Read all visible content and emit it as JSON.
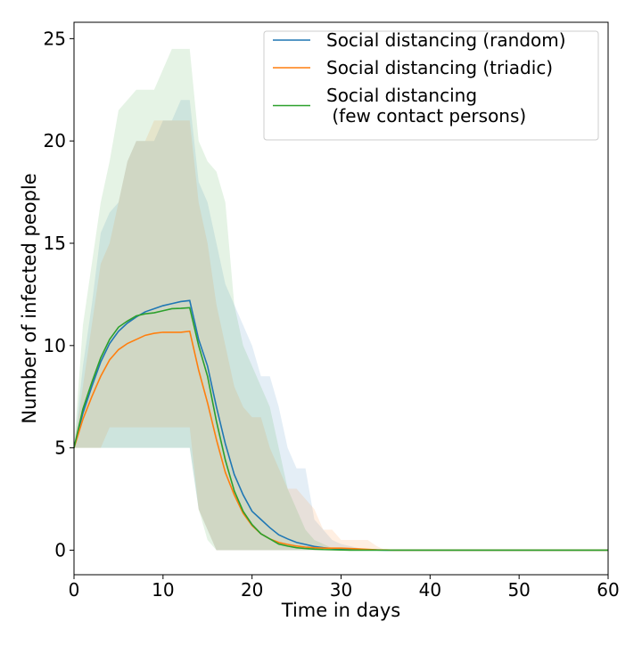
{
  "chart_data": {
    "type": "line",
    "title": "",
    "xlabel": "Time in days",
    "ylabel": "Number of infected people",
    "xlim": [
      0,
      60
    ],
    "ylim": [
      -1.2,
      25.8
    ],
    "xticks": [
      0,
      10,
      20,
      30,
      40,
      50,
      60
    ],
    "yticks": [
      0,
      5,
      10,
      15,
      20,
      25
    ],
    "grid": false,
    "legend_position": "top-right",
    "x": [
      0,
      1,
      2,
      3,
      4,
      5,
      6,
      7,
      8,
      9,
      10,
      11,
      12,
      13,
      14,
      15,
      16,
      17,
      18,
      19,
      20,
      21,
      22,
      23,
      24,
      25,
      26,
      27,
      28,
      29,
      30,
      31,
      32,
      33,
      34,
      35,
      36,
      37,
      38,
      39,
      40,
      41,
      42,
      43,
      44,
      45,
      46,
      47,
      48,
      49,
      50,
      51,
      52,
      53,
      54,
      55,
      56,
      57,
      58,
      59,
      60
    ],
    "series": [
      {
        "name": "Social distancing (random)",
        "color": "#1f77b4",
        "values": [
          5.0,
          6.7,
          8.0,
          9.2,
          10.1,
          10.7,
          11.1,
          11.4,
          11.65,
          11.8,
          11.95,
          12.05,
          12.15,
          12.2,
          10.3,
          9.0,
          7.0,
          5.2,
          3.7,
          2.7,
          1.9,
          1.5,
          1.1,
          0.75,
          0.55,
          0.38,
          0.28,
          0.18,
          0.12,
          0.08,
          0.06,
          0.04,
          0.03,
          0.02,
          0.01,
          0,
          0,
          0,
          0,
          0,
          0,
          0,
          0,
          0,
          0,
          0,
          0,
          0,
          0,
          0,
          0,
          0,
          0,
          0,
          0,
          0,
          0,
          0,
          0,
          0,
          0
        ],
        "band_low": [
          5,
          5,
          5,
          5,
          5,
          5,
          5,
          5,
          5,
          5,
          5,
          5,
          5,
          5,
          2,
          1,
          0,
          0,
          0,
          0,
          0,
          0,
          0,
          0,
          0,
          0,
          0,
          0,
          0,
          0,
          0,
          0,
          0,
          0,
          0,
          0,
          0,
          0,
          0,
          0,
          0,
          0,
          0,
          0,
          0,
          0,
          0,
          0,
          0,
          0,
          0,
          0,
          0,
          0,
          0,
          0,
          0,
          0,
          0,
          0,
          0
        ],
        "band_high": [
          5,
          9,
          12,
          15.5,
          16.5,
          17,
          19,
          20,
          20,
          20,
          21,
          21,
          22,
          22,
          18,
          17,
          15,
          13,
          12,
          11,
          10,
          8.5,
          8.5,
          7,
          5,
          4,
          4,
          1.5,
          1,
          0.5,
          0.3,
          0.2,
          0.1,
          0.05,
          0,
          0,
          0,
          0,
          0,
          0,
          0,
          0,
          0,
          0,
          0,
          0,
          0,
          0,
          0,
          0,
          0,
          0,
          0,
          0,
          0,
          0,
          0,
          0,
          0,
          0,
          0
        ]
      },
      {
        "name": "Social distancing (triadic)",
        "color": "#ff7f0e",
        "values": [
          5.0,
          6.4,
          7.5,
          8.5,
          9.3,
          9.8,
          10.1,
          10.3,
          10.5,
          10.6,
          10.65,
          10.65,
          10.65,
          10.7,
          8.8,
          7.2,
          5.4,
          3.8,
          2.7,
          1.8,
          1.2,
          0.8,
          0.55,
          0.38,
          0.28,
          0.2,
          0.15,
          0.12,
          0.1,
          0.1,
          0.1,
          0.08,
          0.06,
          0.04,
          0.02,
          0.01,
          0,
          0,
          0,
          0,
          0,
          0,
          0,
          0,
          0,
          0,
          0,
          0,
          0,
          0,
          0,
          0,
          0,
          0,
          0,
          0,
          0,
          0,
          0,
          0,
          0
        ],
        "band_low": [
          5,
          5,
          5,
          5,
          6,
          6,
          6,
          6,
          6,
          6,
          6,
          6,
          6,
          6,
          2,
          1,
          0,
          0,
          0,
          0,
          0,
          0,
          0,
          0,
          0,
          0,
          0,
          0,
          0,
          0,
          0,
          0,
          0,
          0,
          0,
          0,
          0,
          0,
          0,
          0,
          0,
          0,
          0,
          0,
          0,
          0,
          0,
          0,
          0,
          0,
          0,
          0,
          0,
          0,
          0,
          0,
          0,
          0,
          0,
          0,
          0
        ],
        "band_high": [
          5,
          8,
          11,
          14,
          15,
          17,
          19,
          20,
          20,
          21,
          21,
          21,
          21,
          21,
          17,
          15,
          12,
          10,
          8,
          7,
          6.5,
          6.5,
          5,
          4,
          3,
          3,
          2.5,
          2,
          1,
          1,
          0.5,
          0.5,
          0.5,
          0.5,
          0.2,
          0,
          0,
          0,
          0,
          0,
          0,
          0,
          0,
          0,
          0,
          0,
          0,
          0,
          0,
          0,
          0,
          0,
          0,
          0,
          0,
          0,
          0,
          0,
          0,
          0,
          0
        ]
      },
      {
        "name": "Social distancing\n (few contact persons)",
        "color": "#2ca02c",
        "values": [
          5.0,
          6.9,
          8.2,
          9.4,
          10.3,
          10.9,
          11.2,
          11.45,
          11.55,
          11.6,
          11.7,
          11.8,
          11.82,
          11.85,
          10.0,
          8.5,
          6.3,
          4.4,
          2.9,
          1.9,
          1.25,
          0.8,
          0.55,
          0.3,
          0.2,
          0.12,
          0.08,
          0.05,
          0.03,
          0.02,
          0.01,
          0,
          0,
          0,
          0,
          0,
          0,
          0,
          0,
          0,
          0,
          0,
          0,
          0,
          0,
          0,
          0,
          0,
          0,
          0,
          0,
          0,
          0,
          0,
          0,
          0,
          0,
          0,
          0,
          0,
          0
        ],
        "band_low": [
          5,
          5,
          5,
          5,
          5,
          5,
          5,
          5,
          5,
          5,
          5,
          5,
          5,
          5,
          2,
          0.5,
          0,
          0,
          0,
          0,
          0,
          0,
          0,
          0,
          0,
          0,
          0,
          0,
          0,
          0,
          0,
          0,
          0,
          0,
          0,
          0,
          0,
          0,
          0,
          0,
          0,
          0,
          0,
          0,
          0,
          0,
          0,
          0,
          0,
          0,
          0,
          0,
          0,
          0,
          0,
          0,
          0,
          0,
          0,
          0,
          0
        ],
        "band_high": [
          5,
          11,
          14,
          17,
          19,
          21.5,
          22,
          22.5,
          22.5,
          22.5,
          23.5,
          24.5,
          24.5,
          24.5,
          20,
          19,
          18.5,
          17,
          12,
          10,
          9,
          8,
          7,
          5,
          3,
          2,
          1,
          0.5,
          0.3,
          0.1,
          0,
          0,
          0,
          0,
          0,
          0,
          0,
          0,
          0,
          0,
          0,
          0,
          0,
          0,
          0,
          0,
          0,
          0,
          0,
          0,
          0,
          0,
          0,
          0,
          0,
          0,
          0,
          0,
          0,
          0,
          0
        ]
      }
    ]
  }
}
